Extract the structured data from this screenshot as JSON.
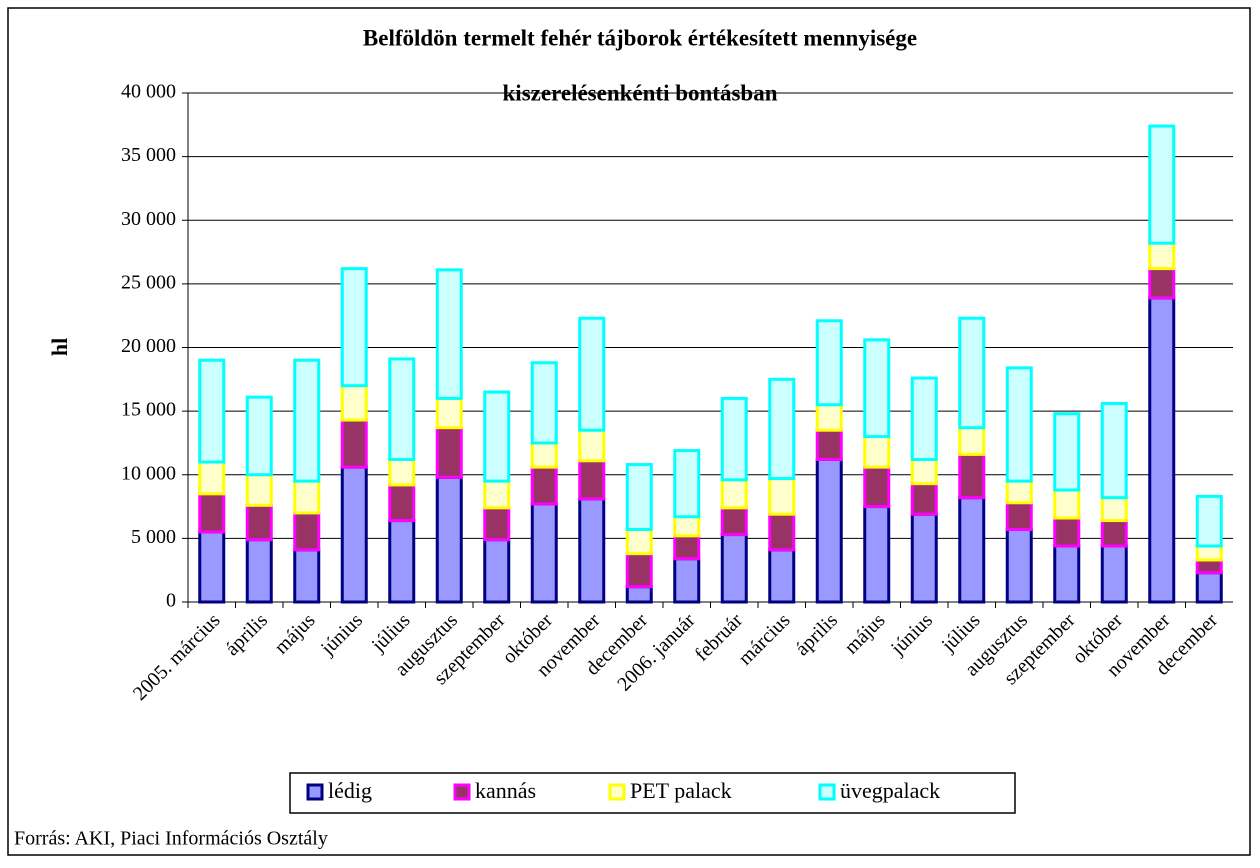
{
  "chart_data": {
    "type": "bar",
    "stacked": true,
    "title": [
      "Belföldön termelt fehér tájborok értékesített mennyisége",
      "kiszerelésenkénti bontásban"
    ],
    "y_label": "hl",
    "source": "Forrás: AKI, Piaci Információs Osztály",
    "categories": [
      "2005. március",
      "április",
      "május",
      "június",
      "július",
      "augusztus",
      "szeptember",
      "október",
      "november",
      "december",
      "2006. január",
      "február",
      "március",
      "április",
      "május",
      "június",
      "július",
      "augusztus",
      "szeptember",
      "október",
      "november",
      "december"
    ],
    "series": [
      {
        "name": "lédig",
        "color": "#9999ff",
        "edgecolor": "#000080",
        "values": [
          5500,
          4900,
          4100,
          10600,
          6400,
          9800,
          4900,
          7700,
          8100,
          1200,
          3400,
          5300,
          4100,
          11200,
          7500,
          6900,
          8200,
          5700,
          4400,
          4400,
          23900,
          2300
        ]
      },
      {
        "name": "kannás",
        "color": "#993366",
        "edgecolor": "#ff00ff",
        "values": [
          3000,
          2700,
          2900,
          3700,
          2800,
          3900,
          2500,
          2900,
          3000,
          2600,
          1800,
          2100,
          2800,
          2300,
          3100,
          2400,
          3400,
          2100,
          2200,
          2000,
          2300,
          1000
        ]
      },
      {
        "name": "PET palack",
        "color": "#ffffcc",
        "edgecolor": "#ffff00",
        "values": [
          2500,
          2400,
          2500,
          2700,
          2000,
          2300,
          2100,
          1900,
          2400,
          1900,
          1500,
          2200,
          2800,
          2000,
          2400,
          1900,
          2100,
          1700,
          2200,
          1800,
          2000,
          1100
        ]
      },
      {
        "name": "üvegpalack",
        "color": "#ccffff",
        "edgecolor": "#00ffff",
        "values": [
          8000,
          6100,
          9500,
          9200,
          7900,
          10100,
          7000,
          6300,
          8800,
          5100,
          5200,
          6400,
          7800,
          6600,
          7600,
          6400,
          8600,
          8900,
          6000,
          7400,
          9200,
          3900
        ]
      }
    ],
    "ylim": [
      0,
      40000
    ],
    "yticks": [
      0,
      {
        "value": 5000,
        "label": "5 000"
      },
      {
        "value": 10000,
        "label": "10 000"
      },
      {
        "value": 15000,
        "label": "15 000"
      },
      {
        "value": 20000,
        "label": "20 000"
      },
      {
        "value": 25000,
        "label": "25 000"
      },
      {
        "value": 30000,
        "label": "30 000"
      },
      {
        "value": 35000,
        "label": "35 000"
      },
      {
        "value": 40000,
        "label": "40 000"
      }
    ],
    "grid": true,
    "legend": "bottom"
  }
}
